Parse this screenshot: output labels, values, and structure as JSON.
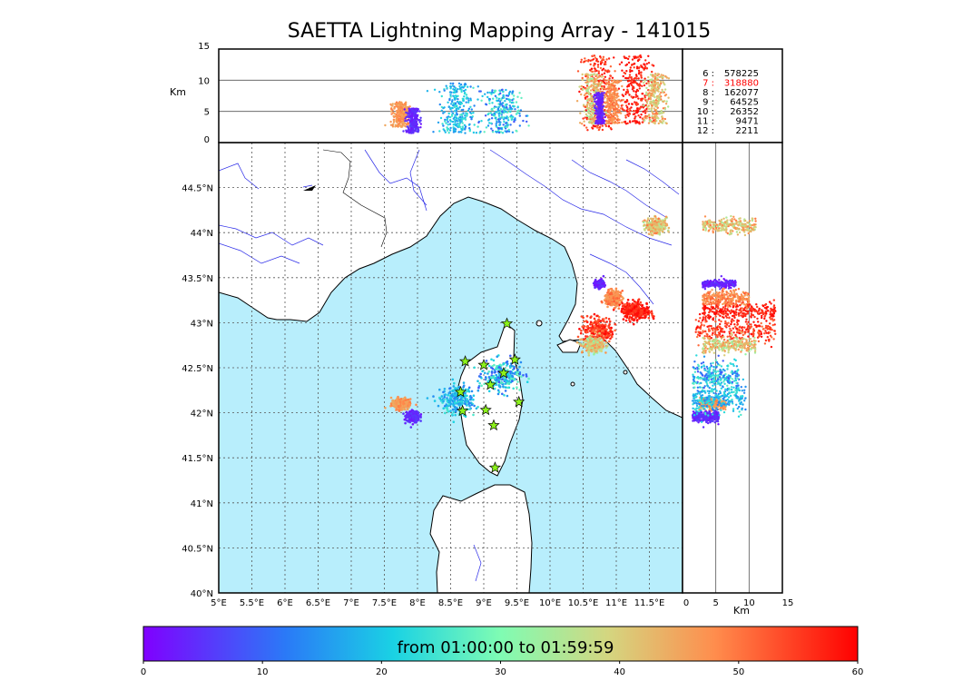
{
  "title": "SAETTA Lightning Mapping Array - 141015",
  "alt_unit_label": "Km",
  "side_unit_label": "Km",
  "colorbar": {
    "label": "from 01:00:00 to 01:59:59",
    "ticks": [
      0,
      10,
      20,
      30,
      40,
      50,
      60
    ],
    "range": [
      0,
      60
    ]
  },
  "stats": [
    {
      "label": "6  :",
      "value": "578225",
      "color": "#000000"
    },
    {
      "label": "7  :",
      "value": "318880",
      "color": "#ff0000"
    },
    {
      "label": "8  :",
      "value": "162077",
      "color": "#000000"
    },
    {
      "label": "9  :",
      "value": "64525",
      "color": "#000000"
    },
    {
      "label": "10 :",
      "value": "26352",
      "color": "#000000"
    },
    {
      "label": "11 :",
      "value": "9471",
      "color": "#000000"
    },
    {
      "label": "12 :",
      "value": "2211",
      "color": "#000000"
    }
  ],
  "chart_data": {
    "type": "scatter",
    "map": {
      "lon_range": [
        5,
        12
      ],
      "lat_range": [
        40,
        45
      ],
      "lon_ticks": [
        "5°E",
        "5.5°E",
        "6°E",
        "6.5°E",
        "7°E",
        "7.5°E",
        "8°E",
        "8.5°E",
        "9°E",
        "9.5°E",
        "10°E",
        "10.5°E",
        "11°E",
        "11.5°E"
      ],
      "lat_ticks": [
        "40°N",
        "40.5°N",
        "41°N",
        "41.5°N",
        "42°N",
        "42.5°N",
        "43°N",
        "43.5°N",
        "44°N",
        "44.5°N"
      ],
      "grid": true,
      "sea_color": "#b8eefc",
      "stations": [
        {
          "lon": 9.35,
          "lat": 42.99
        },
        {
          "lon": 8.72,
          "lat": 42.57
        },
        {
          "lon": 9.0,
          "lat": 42.53
        },
        {
          "lon": 9.47,
          "lat": 42.59
        },
        {
          "lon": 9.3,
          "lat": 42.44
        },
        {
          "lon": 9.1,
          "lat": 42.31
        },
        {
          "lon": 8.65,
          "lat": 42.23
        },
        {
          "lon": 9.53,
          "lat": 42.12
        },
        {
          "lon": 8.68,
          "lat": 42.02
        },
        {
          "lon": 9.03,
          "lat": 42.03
        },
        {
          "lon": 9.15,
          "lat": 41.86
        },
        {
          "lon": 9.17,
          "lat": 41.39
        }
      ]
    },
    "altitude": {
      "range": [
        0,
        15
      ],
      "ticks": [
        0,
        5,
        10,
        15
      ],
      "gridlines": [
        5,
        10
      ]
    },
    "clusters": [
      {
        "lon": 7.75,
        "lat": 42.1,
        "lon_sd": 0.07,
        "lat_sd": 0.03,
        "alt_min": 2.5,
        "alt_max": 6.5,
        "t_min": 44,
        "t_max": 50
      },
      {
        "lon": 7.93,
        "lat": 41.96,
        "lon_sd": 0.05,
        "lat_sd": 0.03,
        "alt_min": 1.5,
        "alt_max": 5.5,
        "t_min": 2,
        "t_max": 6
      },
      {
        "lon": 8.6,
        "lat": 42.15,
        "lon_sd": 0.12,
        "lat_sd": 0.08,
        "alt_min": 1.5,
        "alt_max": 9.5,
        "t_min": 12,
        "t_max": 26
      },
      {
        "lon": 9.28,
        "lat": 42.4,
        "lon_sd": 0.14,
        "lat_sd": 0.08,
        "alt_min": 1.5,
        "alt_max": 8.5,
        "t_min": 8,
        "t_max": 28
      },
      {
        "lon": 10.73,
        "lat": 42.92,
        "lon_sd": 0.12,
        "lat_sd": 0.07,
        "alt_min": 2,
        "alt_max": 14,
        "t_min": 50,
        "t_max": 60
      },
      {
        "lon": 10.65,
        "lat": 42.75,
        "lon_sd": 0.08,
        "lat_sd": 0.04,
        "alt_min": 3,
        "alt_max": 11,
        "t_min": 32,
        "t_max": 48
      },
      {
        "lon": 11.3,
        "lat": 43.13,
        "lon_sd": 0.11,
        "lat_sd": 0.05,
        "alt_min": 3,
        "alt_max": 14,
        "t_min": 54,
        "t_max": 60
      },
      {
        "lon": 10.95,
        "lat": 43.27,
        "lon_sd": 0.06,
        "lat_sd": 0.04,
        "alt_min": 3,
        "alt_max": 10,
        "t_min": 45,
        "t_max": 52
      },
      {
        "lon": 10.75,
        "lat": 43.43,
        "lon_sd": 0.03,
        "lat_sd": 0.02,
        "alt_min": 3,
        "alt_max": 8,
        "t_min": 1,
        "t_max": 6
      },
      {
        "lon": 11.6,
        "lat": 44.08,
        "lon_sd": 0.08,
        "lat_sd": 0.04,
        "alt_min": 3,
        "alt_max": 11,
        "t_min": 34,
        "t_max": 50
      }
    ]
  }
}
